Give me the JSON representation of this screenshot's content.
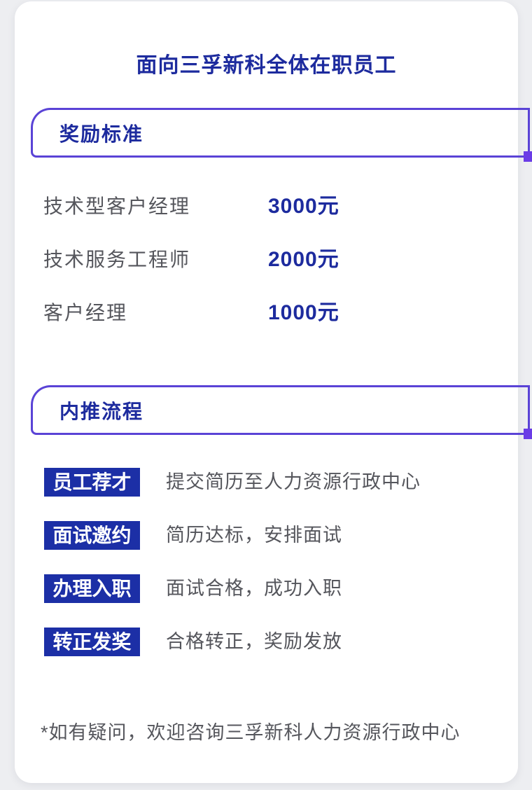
{
  "page": {
    "background_color": "#edeef1",
    "card_background_color": "#ffffff"
  },
  "colors": {
    "navy_text": "#1d2b9e",
    "badge_blue": "#1c2fa6",
    "border_purple": "#5a43d6",
    "corner_square_purple": "#6a3ce6",
    "gray_text": "#55565c"
  },
  "header": {
    "title": "面向三孚新科全体在职员工"
  },
  "reward_section": {
    "title": "奖励标准",
    "rows": [
      {
        "label": "技术型客户经理",
        "value": "3000元"
      },
      {
        "label": "技术服务工程师",
        "value": "2000元"
      },
      {
        "label": "客户经理",
        "value": "1000元"
      }
    ]
  },
  "process_section": {
    "title": "内推流程",
    "steps": [
      {
        "badge": "员工荐才",
        "description": "提交简历至人力资源行政中心"
      },
      {
        "badge": "面试邀约",
        "description": "简历达标，安排面试"
      },
      {
        "badge": "办理入职",
        "description": "面试合格，成功入职"
      },
      {
        "badge": "转正发奖",
        "description": "合格转正，奖励发放"
      }
    ]
  },
  "footnote": "*如有疑问，欢迎咨询三孚新科人力资源行政中心"
}
